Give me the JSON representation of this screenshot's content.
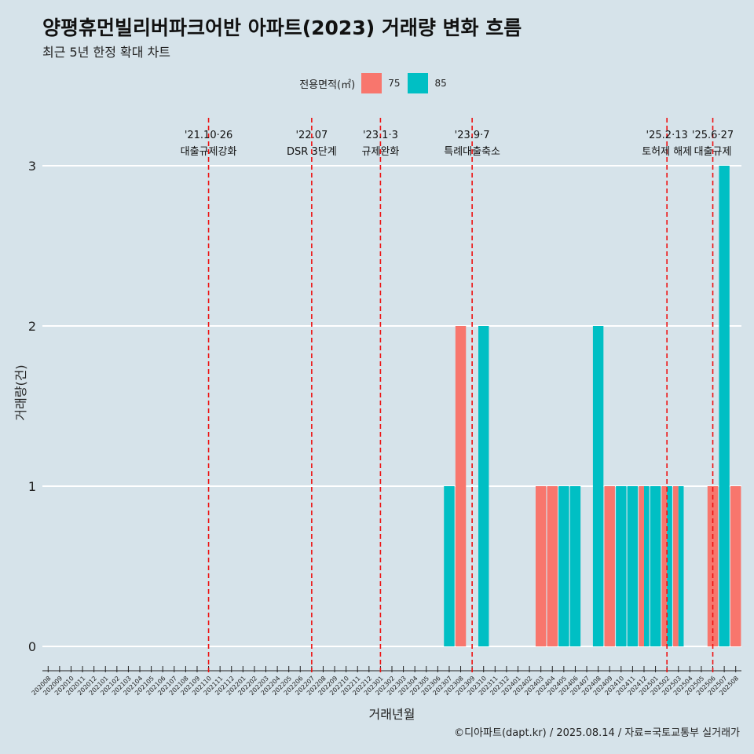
{
  "title": "양평휴먼빌리버파크어반 아파트(2023) 거래량 변화 흐름",
  "subtitle": "최근 5년 한정 확대 차트",
  "caption": "©디아파트(dapt.kr) / 2025.08.14 / 자료=국토교통부 실거래가",
  "legend": {
    "title": "전용면적(㎡)",
    "items": [
      {
        "label": "75",
        "color": "#f8766d"
      },
      {
        "label": "85",
        "color": "#00bfc4"
      }
    ]
  },
  "chart_data": {
    "type": "bar",
    "xlabel": "거래년월",
    "ylabel": "거래량(건)",
    "ylim": [
      0,
      3
    ],
    "yticks": [
      0,
      1,
      2,
      3
    ],
    "grid": true,
    "legend_position": "top",
    "categories": [
      "202008",
      "202009",
      "202010",
      "202011",
      "202012",
      "202101",
      "202102",
      "202103",
      "202104",
      "202105",
      "202106",
      "202107",
      "202108",
      "202109",
      "202110",
      "202111",
      "202112",
      "202201",
      "202202",
      "202203",
      "202204",
      "202205",
      "202206",
      "202207",
      "202208",
      "202209",
      "202210",
      "202211",
      "202212",
      "202301",
      "202302",
      "202303",
      "202304",
      "202305",
      "202306",
      "202307",
      "202308",
      "202309",
      "202310",
      "202311",
      "202312",
      "202401",
      "202402",
      "202403",
      "202404",
      "202405",
      "202406",
      "202407",
      "202408",
      "202409",
      "202410",
      "202411",
      "202412",
      "202501",
      "202502",
      "202503",
      "202504",
      "202505",
      "202506",
      "202507",
      "202508"
    ],
    "series": [
      {
        "name": "75",
        "color": "#f8766d",
        "values": [
          {
            "x": "202308",
            "y": 2
          },
          {
            "x": "202403",
            "y": 1
          },
          {
            "x": "202404",
            "y": 1
          },
          {
            "x": "202409",
            "y": 1
          },
          {
            "x": "202412",
            "y": 1
          },
          {
            "x": "202502",
            "y": 1
          },
          {
            "x": "202503",
            "y": 1
          },
          {
            "x": "202506",
            "y": 1
          },
          {
            "x": "202508",
            "y": 1
          }
        ]
      },
      {
        "name": "85",
        "color": "#00bfc4",
        "values": [
          {
            "x": "202307",
            "y": 1
          },
          {
            "x": "202310",
            "y": 2
          },
          {
            "x": "202405",
            "y": 1
          },
          {
            "x": "202406",
            "y": 1
          },
          {
            "x": "202408",
            "y": 2
          },
          {
            "x": "202410",
            "y": 1
          },
          {
            "x": "202411",
            "y": 1
          },
          {
            "x": "202412",
            "y": 1
          },
          {
            "x": "202501",
            "y": 1
          },
          {
            "x": "202502",
            "y": 1
          },
          {
            "x": "202503",
            "y": 1
          },
          {
            "x": "202507",
            "y": 3
          }
        ]
      }
    ],
    "annotations": [
      {
        "x": "202110",
        "date": "'21.10·26",
        "text": "대출규제강화"
      },
      {
        "x": "202207",
        "date": "'22.07",
        "text": "DSR 3단계"
      },
      {
        "x": "202301",
        "date": "'23.1·3",
        "text": "규제완화"
      },
      {
        "x": "202309",
        "date": "'23.9·7",
        "text": "특례대출축소"
      },
      {
        "x": "202502",
        "date": "'25.2·13",
        "text": "토허제 해제"
      },
      {
        "x": "202506",
        "date": "'25.6·27",
        "text": "대출규제"
      }
    ]
  }
}
